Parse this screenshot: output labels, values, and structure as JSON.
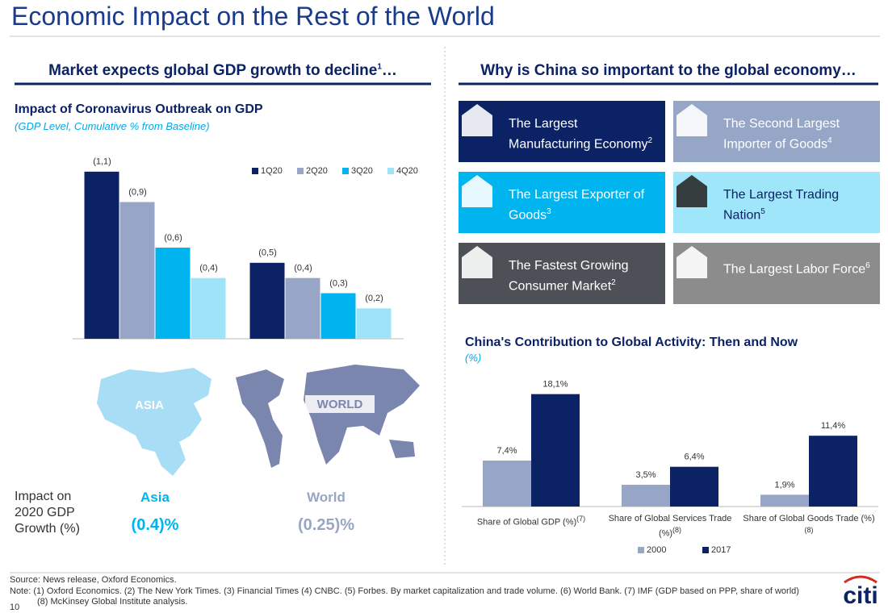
{
  "title": "Economic Impact on the Rest of the World",
  "left": {
    "heading": {
      "text": "Market expects global GDP growth to decline",
      "note": "1",
      "suffix": "…"
    },
    "maps": [
      "ASIA",
      "WORLD"
    ],
    "impact": {
      "label": "Impact on 2020 GDP Growth (%)",
      "regions": [
        {
          "name": "Asia",
          "value": "(0.4)%"
        },
        {
          "name": "World",
          "value": "(0.25)%"
        }
      ]
    }
  },
  "right": {
    "heading": "Why is China so important to the global economy…",
    "tiles": [
      {
        "text": "The Largest Manufacturing Economy",
        "note": "2"
      },
      {
        "text": "The Second Largest Importer of Goods",
        "note": "4"
      },
      {
        "text": "The Largest Exporter of Goods",
        "note": "3"
      },
      {
        "text": "The Largest Trading Nation",
        "note": "5"
      },
      {
        "text": "The Fastest Growing Consumer Market",
        "note": "2"
      },
      {
        "text": "The Largest Labor Force",
        "note": "6"
      }
    ]
  },
  "chart_data": [
    {
      "type": "bar",
      "title": "Impact of Coronavirus Outbreak on GDP",
      "subtitle": "(GDP Level, Cumulative % from Baseline)",
      "categories": [
        null,
        null
      ],
      "series": [
        {
          "name": "1Q20",
          "color": "#0b2265",
          "values": [
            -1.1,
            -0.5
          ],
          "value_labels": [
            "(1,1)",
            "(0,5)"
          ]
        },
        {
          "name": "2Q20",
          "color": "#97a6c6",
          "values": [
            -0.9,
            -0.4
          ],
          "value_labels": [
            "(0,9)",
            "(0,4)"
          ]
        },
        {
          "name": "3Q20",
          "color": "#00b5ef",
          "values": [
            -0.6,
            -0.3
          ],
          "value_labels": [
            "(0,6)",
            "(0,3)"
          ]
        },
        {
          "name": "4Q20",
          "color": "#9fe3f8",
          "values": [
            -0.4,
            -0.2
          ],
          "value_labels": [
            "(0,4)",
            "(0,2)"
          ]
        }
      ],
      "ylim": [
        0,
        -1.2
      ],
      "legend": "top-right"
    },
    {
      "type": "bar",
      "title": "China's Contribution to Global Activity: Then and Now",
      "subtitle": "(%)",
      "categories": [
        "Share of Global GDP (%)",
        "Share of Global Services Trade (%)",
        "Share of Global Goods Trade (%)"
      ],
      "category_notes": [
        "(7)",
        "(8)",
        "(8)"
      ],
      "series": [
        {
          "name": "2000",
          "color": "#97a6c6",
          "values": [
            7.4,
            3.5,
            1.9
          ],
          "value_labels": [
            "7,4%",
            "3,5%",
            "1,9%"
          ]
        },
        {
          "name": "2017",
          "color": "#0b2265",
          "values": [
            18.1,
            6.4,
            11.4
          ],
          "value_labels": [
            "18,1%",
            "6,4%",
            "11,4%"
          ]
        }
      ],
      "ylim": [
        0,
        20
      ],
      "legend": "bottom"
    }
  ],
  "footer": {
    "source": "Source: News release, Oxford Economics.",
    "note": [
      "Note: (1) Oxford Economics. (2) The New York Times. (3) Financial Times (4) CNBC. (5) Forbes. By market capitalization and trade volume. (6) World Bank. (7) IMF (GDP based on PPP, share of world)",
      "(8) McKinsey Global Institute analysis."
    ],
    "page": "10",
    "logo": "citi"
  }
}
